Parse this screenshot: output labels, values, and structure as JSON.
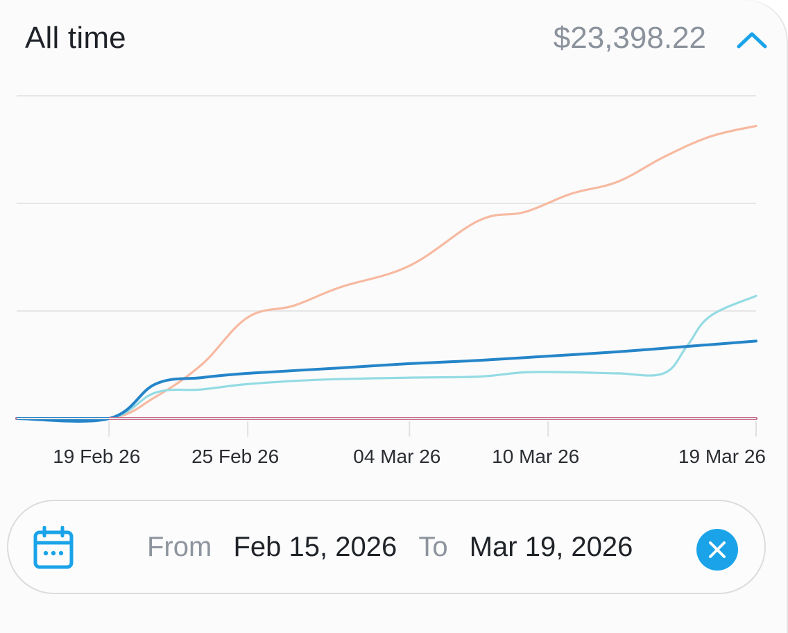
{
  "header": {
    "title": "All time",
    "total": "$23,398.22",
    "collapse_icon": "chevron-up-icon"
  },
  "range": {
    "from_label": "From",
    "from_date": "Feb 15, 2026",
    "to_label": "To",
    "to_date": "Mar 19, 2026",
    "calendar_icon": "calendar-icon",
    "clear_icon": "close-icon"
  },
  "colors": {
    "accent": "#1aa3e8",
    "series_orange": "#f7b9a0",
    "series_teal": "#94dbe3",
    "series_blue": "#2585c8",
    "series_red": "#c9688b"
  },
  "chart_data": {
    "type": "line",
    "x_ticks": [
      "19 Feb 26",
      "25 Feb 26",
      "04 Mar 26",
      "10 Mar 26",
      "19 Mar 26"
    ],
    "x_tick_dates": [
      "2026-02-19",
      "2026-02-25",
      "2026-03-04",
      "2026-03-10",
      "2026-03-19"
    ],
    "grid": "horizontal",
    "legend": "none",
    "series": [
      {
        "color": "#f7b9a0",
        "points": [
          [
            "2026-02-15",
            0
          ],
          [
            "2026-02-19",
            0
          ],
          [
            "2026-02-21",
            0.2
          ],
          [
            "2026-02-23",
            0.5
          ],
          [
            "2026-02-25",
            0.94
          ],
          [
            "2026-02-27",
            1.05
          ],
          [
            "2026-03-01",
            1.22
          ],
          [
            "2026-03-04",
            1.42
          ],
          [
            "2026-03-07",
            1.84
          ],
          [
            "2026-03-09",
            1.92
          ],
          [
            "2026-03-11",
            2.09
          ],
          [
            "2026-03-13",
            2.2
          ],
          [
            "2026-03-15",
            2.43
          ],
          [
            "2026-03-17",
            2.62
          ],
          [
            "2026-03-19",
            2.72
          ]
        ]
      },
      {
        "color": "#94dbe3",
        "points": [
          [
            "2026-02-15",
            0
          ],
          [
            "2026-02-19",
            0
          ],
          [
            "2026-02-21",
            0.24
          ],
          [
            "2026-02-23",
            0.27
          ],
          [
            "2026-02-25",
            0.32
          ],
          [
            "2026-02-28",
            0.36
          ],
          [
            "2026-03-04",
            0.38
          ],
          [
            "2026-03-07",
            0.39
          ],
          [
            "2026-03-09",
            0.43
          ],
          [
            "2026-03-11",
            0.43
          ],
          [
            "2026-03-13",
            0.42
          ],
          [
            "2026-03-15",
            0.42
          ],
          [
            "2026-03-16",
            0.67
          ],
          [
            "2026-03-17",
            0.95
          ],
          [
            "2026-03-19",
            1.14
          ]
        ]
      },
      {
        "color": "#2585c8",
        "points": [
          [
            "2026-02-15",
            0
          ],
          [
            "2026-02-19",
            0
          ],
          [
            "2026-02-21",
            0.32
          ],
          [
            "2026-02-23",
            0.38
          ],
          [
            "2026-02-25",
            0.42
          ],
          [
            "2026-03-01",
            0.47
          ],
          [
            "2026-03-04",
            0.51
          ],
          [
            "2026-03-07",
            0.54
          ],
          [
            "2026-03-10",
            0.58
          ],
          [
            "2026-03-13",
            0.62
          ],
          [
            "2026-03-16",
            0.67
          ],
          [
            "2026-03-19",
            0.72
          ]
        ]
      },
      {
        "color": "#c9688b",
        "points": [
          [
            "2026-02-15",
            0
          ],
          [
            "2026-03-19",
            0
          ]
        ]
      }
    ]
  }
}
